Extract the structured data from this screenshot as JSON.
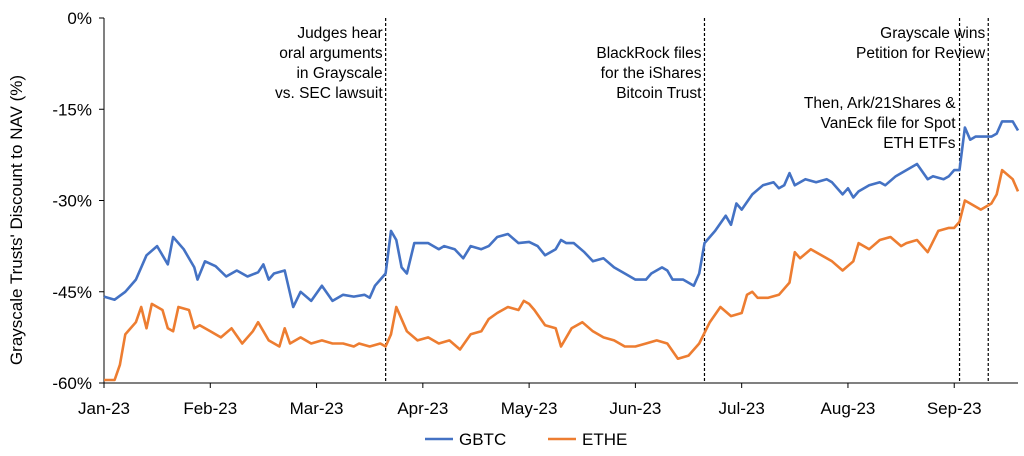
{
  "chart_data": {
    "type": "line",
    "ylabel": "Grayscale Trusts' Discount to NAV (%)",
    "xlabel": "",
    "ylim": [
      -60,
      0
    ],
    "yticks": [
      {
        "value": 0,
        "label": "0%"
      },
      {
        "value": -15,
        "label": "-15%"
      },
      {
        "value": -30,
        "label": "-30%"
      },
      {
        "value": -45,
        "label": "-45%"
      },
      {
        "value": -60,
        "label": "-60%"
      }
    ],
    "xlim": [
      0,
      8.6
    ],
    "xticks": [
      {
        "value": 0,
        "label": "Jan-23"
      },
      {
        "value": 1,
        "label": "Feb-23"
      },
      {
        "value": 2,
        "label": "Mar-23"
      },
      {
        "value": 3,
        "label": "Apr-23"
      },
      {
        "value": 4,
        "label": "May-23"
      },
      {
        "value": 5,
        "label": "Jun-23"
      },
      {
        "value": 6,
        "label": "Jul-23"
      },
      {
        "value": 7,
        "label": "Aug-23"
      },
      {
        "value": 8,
        "label": "Sep-23"
      }
    ],
    "grid": false,
    "legend": "bottom",
    "series": [
      {
        "name": "GBTC",
        "color": "#4472C4",
        "points": [
          [
            0.0,
            -45.8
          ],
          [
            0.1,
            -46.3
          ],
          [
            0.2,
            -45.0
          ],
          [
            0.3,
            -43.0
          ],
          [
            0.4,
            -39.0
          ],
          [
            0.5,
            -37.5
          ],
          [
            0.55,
            -39.0
          ],
          [
            0.6,
            -40.5
          ],
          [
            0.65,
            -36.0
          ],
          [
            0.75,
            -38.0
          ],
          [
            0.85,
            -41.0
          ],
          [
            0.88,
            -43.0
          ],
          [
            0.95,
            -40.0
          ],
          [
            1.05,
            -40.8
          ],
          [
            1.15,
            -42.5
          ],
          [
            1.25,
            -41.5
          ],
          [
            1.35,
            -42.5
          ],
          [
            1.45,
            -41.8
          ],
          [
            1.5,
            -40.5
          ],
          [
            1.55,
            -43.0
          ],
          [
            1.6,
            -42.0
          ],
          [
            1.7,
            -41.5
          ],
          [
            1.78,
            -47.5
          ],
          [
            1.85,
            -45.0
          ],
          [
            1.95,
            -46.5
          ],
          [
            2.05,
            -44.0
          ],
          [
            2.15,
            -46.5
          ],
          [
            2.25,
            -45.5
          ],
          [
            2.35,
            -45.8
          ],
          [
            2.45,
            -45.5
          ],
          [
            2.5,
            -46.0
          ],
          [
            2.55,
            -44.0
          ],
          [
            2.6,
            -43.0
          ],
          [
            2.65,
            -42.0
          ],
          [
            2.7,
            -35.0
          ],
          [
            2.75,
            -36.5
          ],
          [
            2.8,
            -41.0
          ],
          [
            2.85,
            -42.0
          ],
          [
            2.92,
            -37.0
          ],
          [
            3.05,
            -37.0
          ],
          [
            3.15,
            -38.0
          ],
          [
            3.2,
            -37.5
          ],
          [
            3.3,
            -38.0
          ],
          [
            3.38,
            -39.5
          ],
          [
            3.45,
            -37.5
          ],
          [
            3.55,
            -38.0
          ],
          [
            3.62,
            -37.5
          ],
          [
            3.7,
            -36.0
          ],
          [
            3.8,
            -35.5
          ],
          [
            3.9,
            -37.0
          ],
          [
            4.0,
            -36.8
          ],
          [
            4.08,
            -37.5
          ],
          [
            4.15,
            -39.0
          ],
          [
            4.25,
            -38.0
          ],
          [
            4.3,
            -36.5
          ],
          [
            4.35,
            -37.0
          ],
          [
            4.42,
            -37.0
          ],
          [
            4.52,
            -38.5
          ],
          [
            4.6,
            -40.0
          ],
          [
            4.7,
            -39.5
          ],
          [
            4.8,
            -41.0
          ],
          [
            4.9,
            -42.0
          ],
          [
            5.0,
            -43.0
          ],
          [
            5.1,
            -43.0
          ],
          [
            5.15,
            -42.0
          ],
          [
            5.25,
            -41.0
          ],
          [
            5.3,
            -41.5
          ],
          [
            5.35,
            -43.0
          ],
          [
            5.45,
            -43.0
          ],
          [
            5.55,
            -44.0
          ],
          [
            5.6,
            -42.0
          ],
          [
            5.65,
            -37.0
          ],
          [
            5.75,
            -35.0
          ],
          [
            5.85,
            -32.5
          ],
          [
            5.9,
            -34.0
          ],
          [
            5.95,
            -30.5
          ],
          [
            6.0,
            -31.5
          ],
          [
            6.1,
            -29.0
          ],
          [
            6.2,
            -27.5
          ],
          [
            6.3,
            -27.0
          ],
          [
            6.35,
            -28.0
          ],
          [
            6.4,
            -27.5
          ],
          [
            6.45,
            -25.5
          ],
          [
            6.5,
            -27.5
          ],
          [
            6.6,
            -26.5
          ],
          [
            6.7,
            -27.0
          ],
          [
            6.8,
            -26.5
          ],
          [
            6.85,
            -27.0
          ],
          [
            6.95,
            -29.0
          ],
          [
            7.0,
            -28.0
          ],
          [
            7.05,
            -29.5
          ],
          [
            7.1,
            -28.5
          ],
          [
            7.2,
            -27.5
          ],
          [
            7.3,
            -27.0
          ],
          [
            7.35,
            -27.5
          ],
          [
            7.45,
            -26.0
          ],
          [
            7.55,
            -25.0
          ],
          [
            7.65,
            -24.0
          ],
          [
            7.75,
            -26.5
          ],
          [
            7.8,
            -26.0
          ],
          [
            7.9,
            -26.5
          ],
          [
            7.95,
            -26.0
          ],
          [
            8.0,
            -25.0
          ],
          [
            8.05,
            -25.0
          ],
          [
            8.1,
            -18.0
          ],
          [
            8.15,
            -20.0
          ],
          [
            8.2,
            -19.5
          ],
          [
            8.35,
            -19.5
          ],
          [
            8.4,
            -19.0
          ],
          [
            8.45,
            -17.0
          ],
          [
            8.55,
            -17.0
          ],
          [
            8.6,
            -18.5
          ]
        ]
      },
      {
        "name": "ETHE",
        "color": "#ED7D31",
        "points": [
          [
            0.0,
            -59.5
          ],
          [
            0.1,
            -59.5
          ],
          [
            0.15,
            -57.0
          ],
          [
            0.2,
            -52.0
          ],
          [
            0.3,
            -50.0
          ],
          [
            0.35,
            -47.5
          ],
          [
            0.4,
            -51.0
          ],
          [
            0.45,
            -47.0
          ],
          [
            0.55,
            -48.0
          ],
          [
            0.6,
            -51.0
          ],
          [
            0.65,
            -51.5
          ],
          [
            0.7,
            -47.5
          ],
          [
            0.8,
            -48.0
          ],
          [
            0.85,
            -51.0
          ],
          [
            0.9,
            -50.5
          ],
          [
            1.0,
            -51.5
          ],
          [
            1.1,
            -52.5
          ],
          [
            1.2,
            -51.0
          ],
          [
            1.3,
            -53.5
          ],
          [
            1.4,
            -51.5
          ],
          [
            1.45,
            -50.0
          ],
          [
            1.55,
            -53.0
          ],
          [
            1.65,
            -54.0
          ],
          [
            1.7,
            -51.0
          ],
          [
            1.75,
            -53.5
          ],
          [
            1.85,
            -52.5
          ],
          [
            1.95,
            -53.5
          ],
          [
            2.05,
            -53.0
          ],
          [
            2.15,
            -53.5
          ],
          [
            2.25,
            -53.5
          ],
          [
            2.35,
            -54.0
          ],
          [
            2.4,
            -53.5
          ],
          [
            2.5,
            -54.0
          ],
          [
            2.6,
            -53.5
          ],
          [
            2.65,
            -54.0
          ],
          [
            2.7,
            -52.0
          ],
          [
            2.75,
            -47.5
          ],
          [
            2.85,
            -51.5
          ],
          [
            2.95,
            -53.0
          ],
          [
            3.05,
            -52.5
          ],
          [
            3.15,
            -53.5
          ],
          [
            3.25,
            -53.0
          ],
          [
            3.35,
            -54.5
          ],
          [
            3.45,
            -52.0
          ],
          [
            3.55,
            -51.5
          ],
          [
            3.62,
            -49.5
          ],
          [
            3.7,
            -48.5
          ],
          [
            3.8,
            -47.5
          ],
          [
            3.9,
            -48.0
          ],
          [
            3.95,
            -46.5
          ],
          [
            4.0,
            -47.0
          ],
          [
            4.05,
            -48.0
          ],
          [
            4.15,
            -50.5
          ],
          [
            4.25,
            -51.0
          ],
          [
            4.3,
            -54.0
          ],
          [
            4.4,
            -51.0
          ],
          [
            4.5,
            -50.0
          ],
          [
            4.6,
            -51.5
          ],
          [
            4.7,
            -52.5
          ],
          [
            4.8,
            -53.0
          ],
          [
            4.9,
            -54.0
          ],
          [
            5.0,
            -54.0
          ],
          [
            5.1,
            -53.5
          ],
          [
            5.2,
            -53.0
          ],
          [
            5.3,
            -53.5
          ],
          [
            5.4,
            -56.0
          ],
          [
            5.5,
            -55.5
          ],
          [
            5.6,
            -53.5
          ],
          [
            5.7,
            -50.0
          ],
          [
            5.8,
            -47.5
          ],
          [
            5.9,
            -49.0
          ],
          [
            6.0,
            -48.5
          ],
          [
            6.05,
            -45.5
          ],
          [
            6.1,
            -45.0
          ],
          [
            6.15,
            -46.0
          ],
          [
            6.25,
            -46.0
          ],
          [
            6.35,
            -45.5
          ],
          [
            6.45,
            -43.5
          ],
          [
            6.5,
            -38.5
          ],
          [
            6.55,
            -39.5
          ],
          [
            6.65,
            -38.0
          ],
          [
            6.75,
            -39.0
          ],
          [
            6.85,
            -40.0
          ],
          [
            6.95,
            -41.5
          ],
          [
            7.05,
            -40.0
          ],
          [
            7.1,
            -37.0
          ],
          [
            7.2,
            -38.0
          ],
          [
            7.3,
            -36.5
          ],
          [
            7.4,
            -36.0
          ],
          [
            7.5,
            -37.5
          ],
          [
            7.55,
            -37.0
          ],
          [
            7.65,
            -36.5
          ],
          [
            7.75,
            -38.5
          ],
          [
            7.85,
            -35.0
          ],
          [
            7.95,
            -34.5
          ],
          [
            8.0,
            -34.5
          ],
          [
            8.05,
            -33.5
          ],
          [
            8.1,
            -30.0
          ],
          [
            8.15,
            -30.5
          ],
          [
            8.25,
            -31.5
          ],
          [
            8.35,
            -30.5
          ],
          [
            8.4,
            -29.0
          ],
          [
            8.45,
            -25.0
          ],
          [
            8.55,
            -26.5
          ],
          [
            8.6,
            -28.5
          ]
        ]
      }
    ],
    "events": [
      {
        "x": 2.65,
        "lines": [
          "Judges hear",
          "oral arguments",
          "in Grayscale",
          "vs. SEC lawsuit"
        ]
      },
      {
        "x": 5.65,
        "lines": [
          "BlackRock files",
          "for the iShares",
          "Bitcoin Trust"
        ]
      },
      {
        "x": 8.05,
        "lines": [
          "Then, Ark/21Shares &",
          "VanEck file for Spot",
          "ETH ETFs"
        ]
      },
      {
        "x": 8.32,
        "lines": [
          "Grayscale wins",
          "Petition for Review"
        ]
      }
    ]
  }
}
